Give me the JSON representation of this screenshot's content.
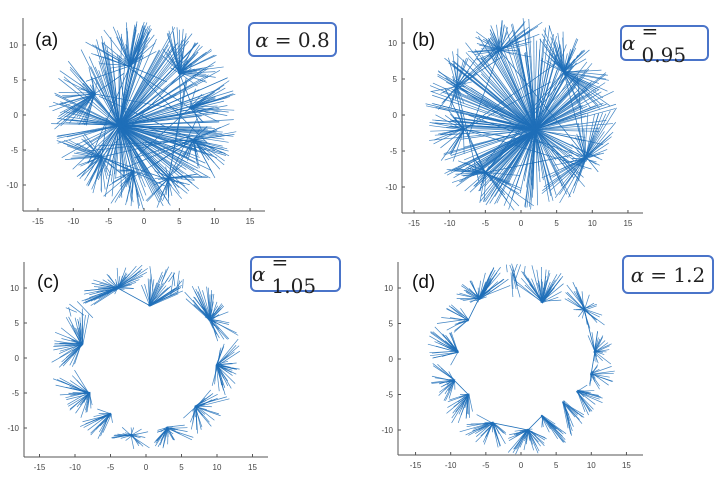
{
  "chart_data": [
    {
      "type": "network",
      "panel_label": "(a)",
      "alpha_symbol": "α",
      "alpha_text": "= 0.8",
      "alpha": 0.8,
      "layout": "disk",
      "hubs": [
        [
          -3.5,
          -1.5
        ],
        [
          -2,
          7
        ],
        [
          5,
          6
        ],
        [
          6.5,
          1
        ],
        [
          7,
          -3.5
        ],
        [
          -7,
          3
        ],
        [
          -6,
          -6
        ],
        [
          -1.5,
          -8
        ],
        [
          3.5,
          -9
        ]
      ],
      "xlim": [
        -17,
        17
      ],
      "ylim": [
        -13.5,
        13.5
      ],
      "xticks": [
        "-15",
        "-10",
        "-5",
        "0",
        "5",
        "10",
        "15"
      ],
      "yticks": [
        "10",
        "5",
        "0",
        "-5",
        "-10"
      ],
      "color": "#1f6fb8"
    },
    {
      "type": "network",
      "panel_label": "(b)",
      "alpha_symbol": "α",
      "alpha_text": "= 0.95",
      "alpha": 0.95,
      "layout": "disk",
      "hubs": [
        [
          2,
          -2
        ],
        [
          -3,
          9
        ],
        [
          -8,
          -2
        ],
        [
          -5,
          -8
        ],
        [
          9,
          -6
        ],
        [
          -9,
          4
        ],
        [
          6,
          6
        ]
      ],
      "xlim": [
        -17,
        17
      ],
      "ylim": [
        -13.5,
        13.5
      ],
      "xticks": [
        "-15",
        "-10",
        "-5",
        "0",
        "5",
        "10",
        "15"
      ],
      "yticks": [
        "10",
        "5",
        "0",
        "-5",
        "-10"
      ],
      "color": "#1f6fb8"
    },
    {
      "type": "network",
      "panel_label": "(c)",
      "alpha_symbol": "α",
      "alpha_text": "= 1.05",
      "alpha": 1.05,
      "layout": "ring",
      "hubs": [
        [
          0.5,
          7.5
        ],
        [
          -4,
          10
        ],
        [
          9,
          5.5
        ],
        [
          -8,
          -5
        ],
        [
          -5,
          -8
        ],
        [
          7,
          -7
        ],
        [
          10,
          -1
        ],
        [
          -9,
          2
        ],
        [
          3,
          -10
        ],
        [
          -2,
          -11
        ]
      ],
      "xlim": [
        -17,
        17
      ],
      "ylim": [
        -13.5,
        13.5
      ],
      "xticks": [
        "-15",
        "-10",
        "-5",
        "0",
        "5",
        "10",
        "15"
      ],
      "yticks": [
        "10",
        "5",
        "0",
        "-5",
        "-10"
      ],
      "color": "#1f6fb8"
    },
    {
      "type": "network",
      "panel_label": "(d)",
      "alpha_symbol": "α",
      "alpha_text": "= 1.2",
      "alpha": 1.2,
      "layout": "ring",
      "hubs": [
        [
          3,
          8
        ],
        [
          -7.5,
          5.5
        ],
        [
          -6,
          8.5
        ],
        [
          9,
          7
        ],
        [
          10.5,
          1
        ],
        [
          10,
          -2
        ],
        [
          8,
          -4.5
        ],
        [
          -7.5,
          -5
        ],
        [
          -9.5,
          -3
        ],
        [
          3,
          -8
        ],
        [
          1,
          -10
        ],
        [
          -4,
          -9
        ],
        [
          -9,
          1
        ],
        [
          6,
          -6
        ]
      ],
      "xlim": [
        -17,
        17
      ],
      "ylim": [
        -13.5,
        13.5
      ],
      "xticks": [
        "-15",
        "-10",
        "-5",
        "0",
        "5",
        "10",
        "15"
      ],
      "yticks": [
        "10",
        "5",
        "0",
        "-5",
        "-10"
      ],
      "color": "#1f6fb8"
    }
  ]
}
